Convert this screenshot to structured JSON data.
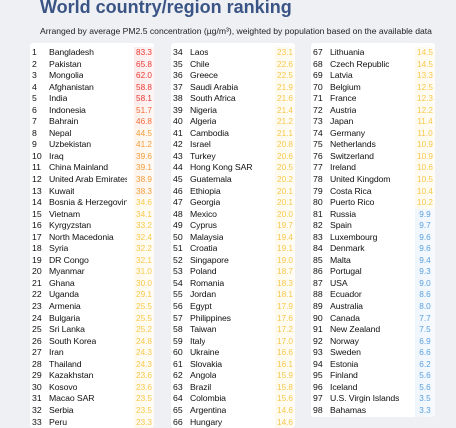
{
  "header": {
    "title": "World country/region ranking",
    "subtitle": "Arranged by average PM2.5 concentration (µg/m³), weighted by population based on the available data"
  },
  "columns": [
    [
      {
        "rank": "1",
        "name": "Bangladesh",
        "value": "83.3",
        "color": "#e53935"
      },
      {
        "rank": "2",
        "name": "Pakistan",
        "value": "65.8",
        "color": "#e53935"
      },
      {
        "rank": "3",
        "name": "Mongolia",
        "value": "62.0",
        "color": "#e53935"
      },
      {
        "rank": "4",
        "name": "Afghanistan",
        "value": "58.8",
        "color": "#e53935"
      },
      {
        "rank": "5",
        "name": "India",
        "value": "58.1",
        "color": "#e53935"
      },
      {
        "rank": "6",
        "name": "Indonesia",
        "value": "51.7",
        "color": "#f26b3a"
      },
      {
        "rank": "7",
        "name": "Bahrain",
        "value": "46.8",
        "color": "#f26b3a"
      },
      {
        "rank": "8",
        "name": "Nepal",
        "value": "44.5",
        "color": "#f39c3a"
      },
      {
        "rank": "9",
        "name": "Uzbekistan",
        "value": "41.2",
        "color": "#f39c3a"
      },
      {
        "rank": "10",
        "name": "Iraq",
        "value": "39.6",
        "color": "#f39c3a"
      },
      {
        "rank": "11",
        "name": "China Mainland",
        "value": "39.1",
        "color": "#f39c3a"
      },
      {
        "rank": "12",
        "name": "United Arab Emirates",
        "value": "38.9",
        "color": "#f39c3a"
      },
      {
        "rank": "13",
        "name": "Kuwait",
        "value": "38.3",
        "color": "#f39c3a"
      },
      {
        "rank": "14",
        "name": "Bosnia & Herzegovina",
        "value": "34.6",
        "color": "#f7c94a"
      },
      {
        "rank": "15",
        "name": "Vietnam",
        "value": "34.1",
        "color": "#f7c94a"
      },
      {
        "rank": "16",
        "name": "Kyrgyzstan",
        "value": "33.2",
        "color": "#f7c94a"
      },
      {
        "rank": "17",
        "name": "North Macedonia",
        "value": "32.4",
        "color": "#f7c94a"
      },
      {
        "rank": "18",
        "name": "Syria",
        "value": "32.2",
        "color": "#f7c94a"
      },
      {
        "rank": "19",
        "name": "DR Congo",
        "value": "32.1",
        "color": "#f7c94a"
      },
      {
        "rank": "20",
        "name": "Myanmar",
        "value": "31.0",
        "color": "#f7c94a"
      },
      {
        "rank": "21",
        "name": "Ghana",
        "value": "30.0",
        "color": "#f7c94a"
      },
      {
        "rank": "22",
        "name": "Uganda",
        "value": "29.1",
        "color": "#f7c94a"
      },
      {
        "rank": "23",
        "name": "Armenia",
        "value": "25.5",
        "color": "#f7c94a"
      },
      {
        "rank": "24",
        "name": "Bulgaria",
        "value": "25.5",
        "color": "#f7c94a"
      },
      {
        "rank": "25",
        "name": "Sri Lanka",
        "value": "25.2",
        "color": "#f7c94a"
      },
      {
        "rank": "26",
        "name": "South Korea",
        "value": "24.8",
        "color": "#f7c94a"
      },
      {
        "rank": "27",
        "name": "Iran",
        "value": "24.3",
        "color": "#f7c94a"
      },
      {
        "rank": "28",
        "name": "Thailand",
        "value": "24.3",
        "color": "#f7c94a"
      },
      {
        "rank": "29",
        "name": "Kazakhstan",
        "value": "23.6",
        "color": "#f7c94a"
      },
      {
        "rank": "30",
        "name": "Kosovo",
        "value": "23.6",
        "color": "#f7c94a"
      },
      {
        "rank": "31",
        "name": "Macao SAR",
        "value": "23.5",
        "color": "#f7c94a"
      },
      {
        "rank": "32",
        "name": "Serbia",
        "value": "23.5",
        "color": "#f7c94a"
      },
      {
        "rank": "33",
        "name": "Peru",
        "value": "23.3",
        "color": "#f7c94a"
      }
    ],
    [
      {
        "rank": "34",
        "name": "Laos",
        "value": "23.1",
        "color": "#f7c94a"
      },
      {
        "rank": "35",
        "name": "Chile",
        "value": "22.6",
        "color": "#f7c94a"
      },
      {
        "rank": "36",
        "name": "Greece",
        "value": "22.5",
        "color": "#f7c94a"
      },
      {
        "rank": "37",
        "name": "Saudi Arabia",
        "value": "21.9",
        "color": "#f7c94a"
      },
      {
        "rank": "38",
        "name": "South Africa",
        "value": "21.6",
        "color": "#f7c94a"
      },
      {
        "rank": "39",
        "name": "Nigeria",
        "value": "21.4",
        "color": "#f7c94a"
      },
      {
        "rank": "40",
        "name": "Algeria",
        "value": "21.2",
        "color": "#f7c94a"
      },
      {
        "rank": "41",
        "name": "Cambodia",
        "value": "21.1",
        "color": "#f7c94a"
      },
      {
        "rank": "42",
        "name": "Israel",
        "value": "20.8",
        "color": "#f7c94a"
      },
      {
        "rank": "43",
        "name": "Turkey",
        "value": "20.6",
        "color": "#f7c94a"
      },
      {
        "rank": "44",
        "name": "Hong Kong SAR",
        "value": "20.5",
        "color": "#f7c94a"
      },
      {
        "rank": "45",
        "name": "Guatemala",
        "value": "20.2",
        "color": "#f7c94a"
      },
      {
        "rank": "46",
        "name": "Ethiopia",
        "value": "20.1",
        "color": "#f7c94a"
      },
      {
        "rank": "47",
        "name": "Georgia",
        "value": "20.1",
        "color": "#f7c94a"
      },
      {
        "rank": "48",
        "name": "Mexico",
        "value": "20.0",
        "color": "#f7c94a"
      },
      {
        "rank": "49",
        "name": "Cyprus",
        "value": "19.7",
        "color": "#f7c94a"
      },
      {
        "rank": "50",
        "name": "Malaysia",
        "value": "19.4",
        "color": "#f7c94a"
      },
      {
        "rank": "51",
        "name": "Croatia",
        "value": "19.1",
        "color": "#f7c94a"
      },
      {
        "rank": "52",
        "name": "Singapore",
        "value": "19.0",
        "color": "#f7c94a"
      },
      {
        "rank": "53",
        "name": "Poland",
        "value": "18.7",
        "color": "#f7c94a"
      },
      {
        "rank": "54",
        "name": "Romania",
        "value": "18.3",
        "color": "#f7c94a"
      },
      {
        "rank": "55",
        "name": "Jordan",
        "value": "18.1",
        "color": "#f7c94a"
      },
      {
        "rank": "56",
        "name": "Egypt",
        "value": "17.9",
        "color": "#f7c94a"
      },
      {
        "rank": "57",
        "name": "Philippines",
        "value": "17.6",
        "color": "#f7c94a"
      },
      {
        "rank": "58",
        "name": "Taiwan",
        "value": "17.2",
        "color": "#f7c94a"
      },
      {
        "rank": "59",
        "name": "Italy",
        "value": "17.0",
        "color": "#f7c94a"
      },
      {
        "rank": "60",
        "name": "Ukraine",
        "value": "16.6",
        "color": "#f7c94a"
      },
      {
        "rank": "61",
        "name": "Slovakia",
        "value": "16.1",
        "color": "#f7c94a"
      },
      {
        "rank": "62",
        "name": "Angola",
        "value": "15.9",
        "color": "#f7c94a"
      },
      {
        "rank": "63",
        "name": "Brazil",
        "value": "15.8",
        "color": "#f7c94a"
      },
      {
        "rank": "64",
        "name": "Colombia",
        "value": "15.6",
        "color": "#f7c94a"
      },
      {
        "rank": "65",
        "name": "Argentina",
        "value": "14.6",
        "color": "#f7c94a"
      },
      {
        "rank": "66",
        "name": "Hungary",
        "value": "14.6",
        "color": "#f7c94a"
      }
    ],
    [
      {
        "rank": "67",
        "name": "Lithuania",
        "value": "14.5",
        "color": "#f7c94a"
      },
      {
        "rank": "68",
        "name": "Czech Republic",
        "value": "14.5",
        "color": "#f7c94a"
      },
      {
        "rank": "69",
        "name": "Latvia",
        "value": "13.3",
        "color": "#f7c94a"
      },
      {
        "rank": "70",
        "name": "Belgium",
        "value": "12.5",
        "color": "#f7c94a"
      },
      {
        "rank": "71",
        "name": "France",
        "value": "12.3",
        "color": "#f7c94a"
      },
      {
        "rank": "72",
        "name": "Austria",
        "value": "12.2",
        "color": "#f7c94a"
      },
      {
        "rank": "73",
        "name": "Japan",
        "value": "11.4",
        "color": "#f7c94a"
      },
      {
        "rank": "74",
        "name": "Germany",
        "value": "11.0",
        "color": "#f7c94a"
      },
      {
        "rank": "75",
        "name": "Netherlands",
        "value": "10.9",
        "color": "#f7c94a"
      },
      {
        "rank": "76",
        "name": "Switzerland",
        "value": "10.9",
        "color": "#f7c94a"
      },
      {
        "rank": "77",
        "name": "Ireland",
        "value": "10.6",
        "color": "#f7c94a"
      },
      {
        "rank": "78",
        "name": "United Kingdom",
        "value": "10.5",
        "color": "#f7c94a"
      },
      {
        "rank": "79",
        "name": "Costa Rica",
        "value": "10.4",
        "color": "#f7c94a"
      },
      {
        "rank": "80",
        "name": "Puerto Rico",
        "value": "10.2",
        "color": "#f7c94a"
      },
      {
        "rank": "81",
        "name": "Russia",
        "value": "9.9",
        "color": "#5aa0e0"
      },
      {
        "rank": "82",
        "name": "Spain",
        "value": "9.7",
        "color": "#5aa0e0"
      },
      {
        "rank": "83",
        "name": "Luxembourg",
        "value": "9.6",
        "color": "#5aa0e0"
      },
      {
        "rank": "84",
        "name": "Denmark",
        "value": "9.6",
        "color": "#5aa0e0"
      },
      {
        "rank": "85",
        "name": "Malta",
        "value": "9.4",
        "color": "#5aa0e0"
      },
      {
        "rank": "86",
        "name": "Portugal",
        "value": "9.3",
        "color": "#5aa0e0"
      },
      {
        "rank": "87",
        "name": "USA",
        "value": "9.0",
        "color": "#5aa0e0"
      },
      {
        "rank": "88",
        "name": "Ecuador",
        "value": "8.6",
        "color": "#5aa0e0"
      },
      {
        "rank": "89",
        "name": "Australia",
        "value": "8.0",
        "color": "#5aa0e0"
      },
      {
        "rank": "90",
        "name": "Canada",
        "value": "7.7",
        "color": "#5aa0e0"
      },
      {
        "rank": "91",
        "name": "New Zealand",
        "value": "7.5",
        "color": "#5aa0e0"
      },
      {
        "rank": "92",
        "name": "Norway",
        "value": "6.9",
        "color": "#5aa0e0"
      },
      {
        "rank": "93",
        "name": "Sweden",
        "value": "6.6",
        "color": "#5aa0e0"
      },
      {
        "rank": "94",
        "name": "Estonia",
        "value": "6.2",
        "color": "#5aa0e0"
      },
      {
        "rank": "95",
        "name": "Finland",
        "value": "5.6",
        "color": "#5aa0e0"
      },
      {
        "rank": "96",
        "name": "Iceland",
        "value": "5.6",
        "color": "#5aa0e0"
      },
      {
        "rank": "97",
        "name": "U.S. Virgin Islands",
        "value": "3.5",
        "color": "#5aa0e0"
      },
      {
        "rank": "98",
        "name": "Bahamas",
        "value": "3.3",
        "color": "#5aa0e0"
      }
    ]
  ]
}
